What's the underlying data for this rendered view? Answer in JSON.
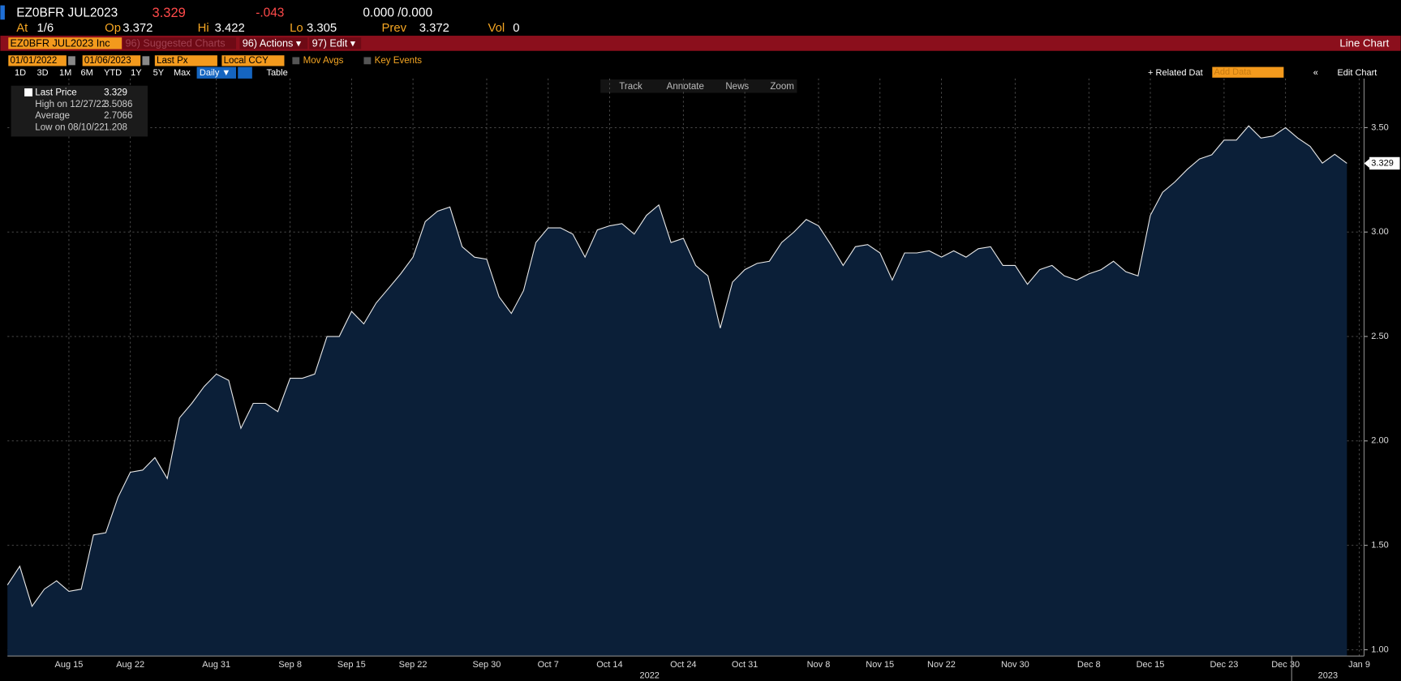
{
  "header": {
    "ticker": "EZ0BFR JUL2023",
    "last": "3.329",
    "change": "-.043",
    "bid_ask": "0.000 /0.000",
    "fields": [
      {
        "label": "At",
        "value": "1/6"
      },
      {
        "label": "Op",
        "value": "3.372"
      },
      {
        "label": "Hi",
        "value": "3.422"
      },
      {
        "label": "Lo",
        "value": "3.305"
      },
      {
        "label": "Prev",
        "value": "3.372"
      },
      {
        "label": "Vol",
        "value": "0"
      }
    ]
  },
  "toolbar": {
    "security": "EZ0BFR JUL2023 Inc",
    "suggested": "96) Suggested Charts",
    "actions": "96) Actions ▾",
    "edit": "97) Edit ▾",
    "title": "Line Chart"
  },
  "settings": {
    "start": "01/01/2022",
    "end": "01/06/2023",
    "price": "Last Px",
    "currency": "Local CCY",
    "mov_avgs": "Mov Avgs",
    "key_events": "Key Events"
  },
  "periods": [
    "1D",
    "3D",
    "1M",
    "6M",
    "YTD",
    "1Y",
    "5Y",
    "Max"
  ],
  "frequency": "Daily ▼",
  "table": "Table",
  "related": "+ Related Dat",
  "add_data": "Add Data",
  "edit_chart": "Edit Chart",
  "chart_tools": [
    "Track",
    "Annotate",
    "News",
    "Zoom"
  ],
  "chart_data": {
    "type": "area",
    "x": [
      "2022-08-08",
      "2022-08-09",
      "2022-08-10",
      "2022-08-11",
      "2022-08-12",
      "2022-08-15",
      "2022-08-16",
      "2022-08-17",
      "2022-08-18",
      "2022-08-19",
      "2022-08-22",
      "2022-08-23",
      "2022-08-24",
      "2022-08-25",
      "2022-08-26",
      "2022-08-29",
      "2022-08-30",
      "2022-08-31",
      "2022-09-01",
      "2022-09-02",
      "2022-09-05",
      "2022-09-06",
      "2022-09-07",
      "2022-09-08",
      "2022-09-09",
      "2022-09-12",
      "2022-09-13",
      "2022-09-14",
      "2022-09-15",
      "2022-09-16",
      "2022-09-19",
      "2022-09-20",
      "2022-09-21",
      "2022-09-22",
      "2022-09-23",
      "2022-09-26",
      "2022-09-27",
      "2022-09-28",
      "2022-09-29",
      "2022-09-30",
      "2022-10-03",
      "2022-10-04",
      "2022-10-05",
      "2022-10-06",
      "2022-10-07",
      "2022-10-10",
      "2022-10-11",
      "2022-10-12",
      "2022-10-13",
      "2022-10-14",
      "2022-10-17",
      "2022-10-18",
      "2022-10-19",
      "2022-10-20",
      "2022-10-21",
      "2022-10-24",
      "2022-10-25",
      "2022-10-26",
      "2022-10-27",
      "2022-10-28",
      "2022-10-31",
      "2022-11-01",
      "2022-11-02",
      "2022-11-03",
      "2022-11-04",
      "2022-11-07",
      "2022-11-08",
      "2022-11-09",
      "2022-11-10",
      "2022-11-11",
      "2022-11-14",
      "2022-11-15",
      "2022-11-16",
      "2022-11-17",
      "2022-11-18",
      "2022-11-21",
      "2022-11-22",
      "2022-11-23",
      "2022-11-24",
      "2022-11-25",
      "2022-11-28",
      "2022-11-29",
      "2022-11-30",
      "2022-12-01",
      "2022-12-02",
      "2022-12-05",
      "2022-12-06",
      "2022-12-07",
      "2022-12-08",
      "2022-12-09",
      "2022-12-12",
      "2022-12-13",
      "2022-12-14",
      "2022-12-15",
      "2022-12-16",
      "2022-12-19",
      "2022-12-20",
      "2022-12-21",
      "2022-12-22",
      "2022-12-23",
      "2022-12-26",
      "2022-12-27",
      "2022-12-28",
      "2022-12-29",
      "2022-12-30",
      "2023-01-02",
      "2023-01-03",
      "2023-01-04",
      "2023-01-05",
      "2023-01-06"
    ],
    "series": [
      {
        "name": "Last Price",
        "color": "#e8e8e8",
        "fill": "#0b1f38",
        "values": [
          1.31,
          1.4,
          1.208,
          1.29,
          1.33,
          1.28,
          1.29,
          1.55,
          1.56,
          1.73,
          1.85,
          1.86,
          1.92,
          1.82,
          2.11,
          2.18,
          2.26,
          2.32,
          2.29,
          2.06,
          2.18,
          2.18,
          2.14,
          2.3,
          2.3,
          2.32,
          2.5,
          2.5,
          2.62,
          2.56,
          2.66,
          2.73,
          2.8,
          2.88,
          3.05,
          3.1,
          3.12,
          2.93,
          2.88,
          2.87,
          2.69,
          2.61,
          2.72,
          2.95,
          3.02,
          3.02,
          2.99,
          2.88,
          3.01,
          3.03,
          3.04,
          2.99,
          3.08,
          3.13,
          2.95,
          2.97,
          2.84,
          2.79,
          2.54,
          2.76,
          2.82,
          2.85,
          2.86,
          2.95,
          3.0,
          3.06,
          3.03,
          2.94,
          2.84,
          2.93,
          2.94,
          2.9,
          2.77,
          2.9,
          2.9,
          2.91,
          2.88,
          2.91,
          2.88,
          2.92,
          2.93,
          2.84,
          2.84,
          2.75,
          2.82,
          2.84,
          2.79,
          2.77,
          2.8,
          2.82,
          2.86,
          2.81,
          2.79,
          3.08,
          3.19,
          3.24,
          3.3,
          3.35,
          3.37,
          3.44,
          3.44,
          3.5086,
          3.45,
          3.46,
          3.5,
          3.45,
          3.41,
          3.33,
          3.372,
          3.329
        ]
      }
    ],
    "legend": {
      "high": "High on 12/27/22",
      "average": "Average",
      "average_value": 2.7066,
      "low": "Low on 08/10/22"
    },
    "ylim": [
      0.97,
      3.735
    ],
    "yticks": [
      {
        "value": 1,
        "label": "1.00"
      },
      {
        "value": 1.5,
        "label": "1.50"
      },
      {
        "value": 2,
        "label": "2.00"
      },
      {
        "value": 2.5,
        "label": "2.50"
      },
      {
        "value": 3,
        "label": "3.00"
      },
      {
        "value": 3.5,
        "label": "3.50"
      }
    ],
    "xticks": [
      {
        "value": "2022-08-15",
        "label": "Aug 15"
      },
      {
        "value": "2022-08-22",
        "label": "Aug 22"
      },
      {
        "value": "2022-08-31",
        "label": "Aug 31"
      },
      {
        "value": "2022-09-08",
        "label": "Sep 8"
      },
      {
        "value": "2022-09-15",
        "label": "Sep 15"
      },
      {
        "value": "2022-09-22",
        "label": "Sep 22"
      },
      {
        "value": "2022-09-30",
        "label": "Sep 30"
      },
      {
        "value": "2022-10-07",
        "label": "Oct 7"
      },
      {
        "value": "2022-10-14",
        "label": "Oct 14"
      },
      {
        "value": "2022-10-24",
        "label": "Oct 24"
      },
      {
        "value": "2022-10-31",
        "label": "Oct 31"
      },
      {
        "value": "2022-11-08",
        "label": "Nov 8"
      },
      {
        "value": "2022-11-15",
        "label": "Nov 15"
      },
      {
        "value": "2022-11-22",
        "label": "Nov 22"
      },
      {
        "value": "2022-11-30",
        "label": "Nov 30"
      },
      {
        "value": "2022-12-08",
        "label": "Dec 8"
      },
      {
        "value": "2022-12-15",
        "label": "Dec 15"
      },
      {
        "value": "2022-12-23",
        "label": "Dec 23"
      },
      {
        "value": "2022-12-30",
        "label": "Dec 30"
      },
      {
        "value": "2023-01-09",
        "label": "Jan 9"
      }
    ],
    "years": [
      {
        "value": "2022-01-01",
        "label": "2022"
      },
      {
        "value": "2023-01-01",
        "label": "2023"
      }
    ],
    "grid": true
  }
}
